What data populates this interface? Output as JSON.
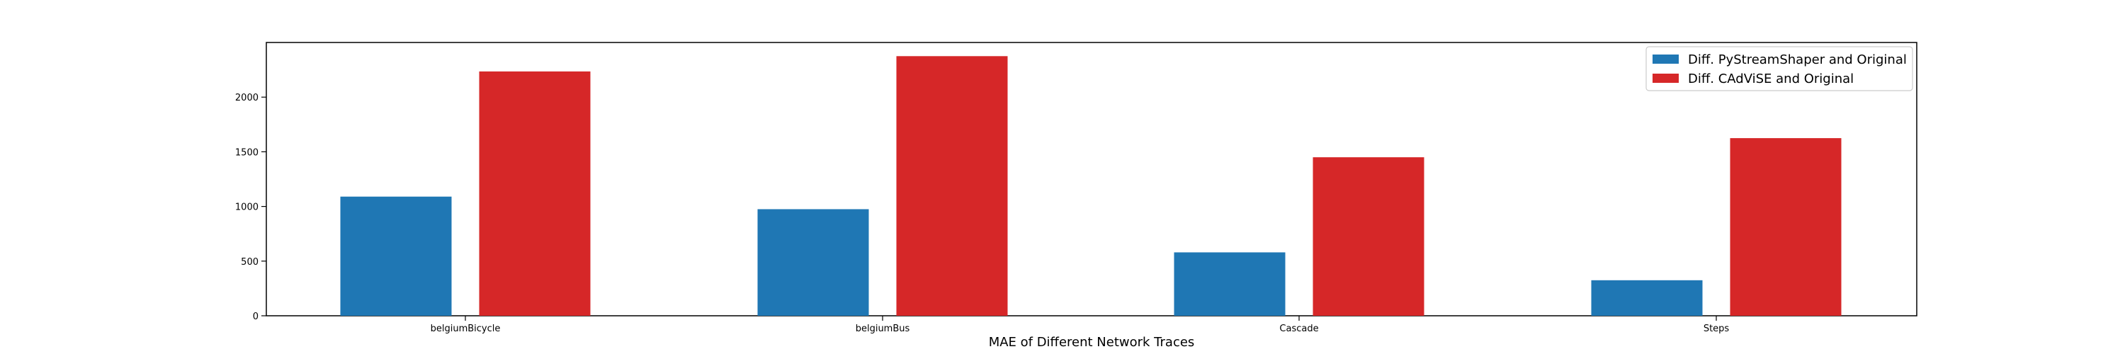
{
  "chart_data": {
    "type": "bar",
    "categories": [
      "belgiumBicycle",
      "belgiumBus",
      "Cascade",
      "Steps"
    ],
    "series": [
      {
        "name": "Diff. PyStreamShaper and Original",
        "color": "#1f77b4",
        "values": [
          1090,
          975,
          580,
          325
        ]
      },
      {
        "name": "Diff. CAdViSE and Original",
        "color": "#d62728",
        "values": [
          2235,
          2375,
          1450,
          1625
        ]
      }
    ],
    "title": "",
    "xlabel": "MAE of Different Network Traces",
    "ylabel": "",
    "ylim": [
      0,
      2500
    ],
    "yticks": [
      0,
      500,
      1000,
      1500,
      2000
    ],
    "grid": false,
    "legend_position": "top-right"
  }
}
